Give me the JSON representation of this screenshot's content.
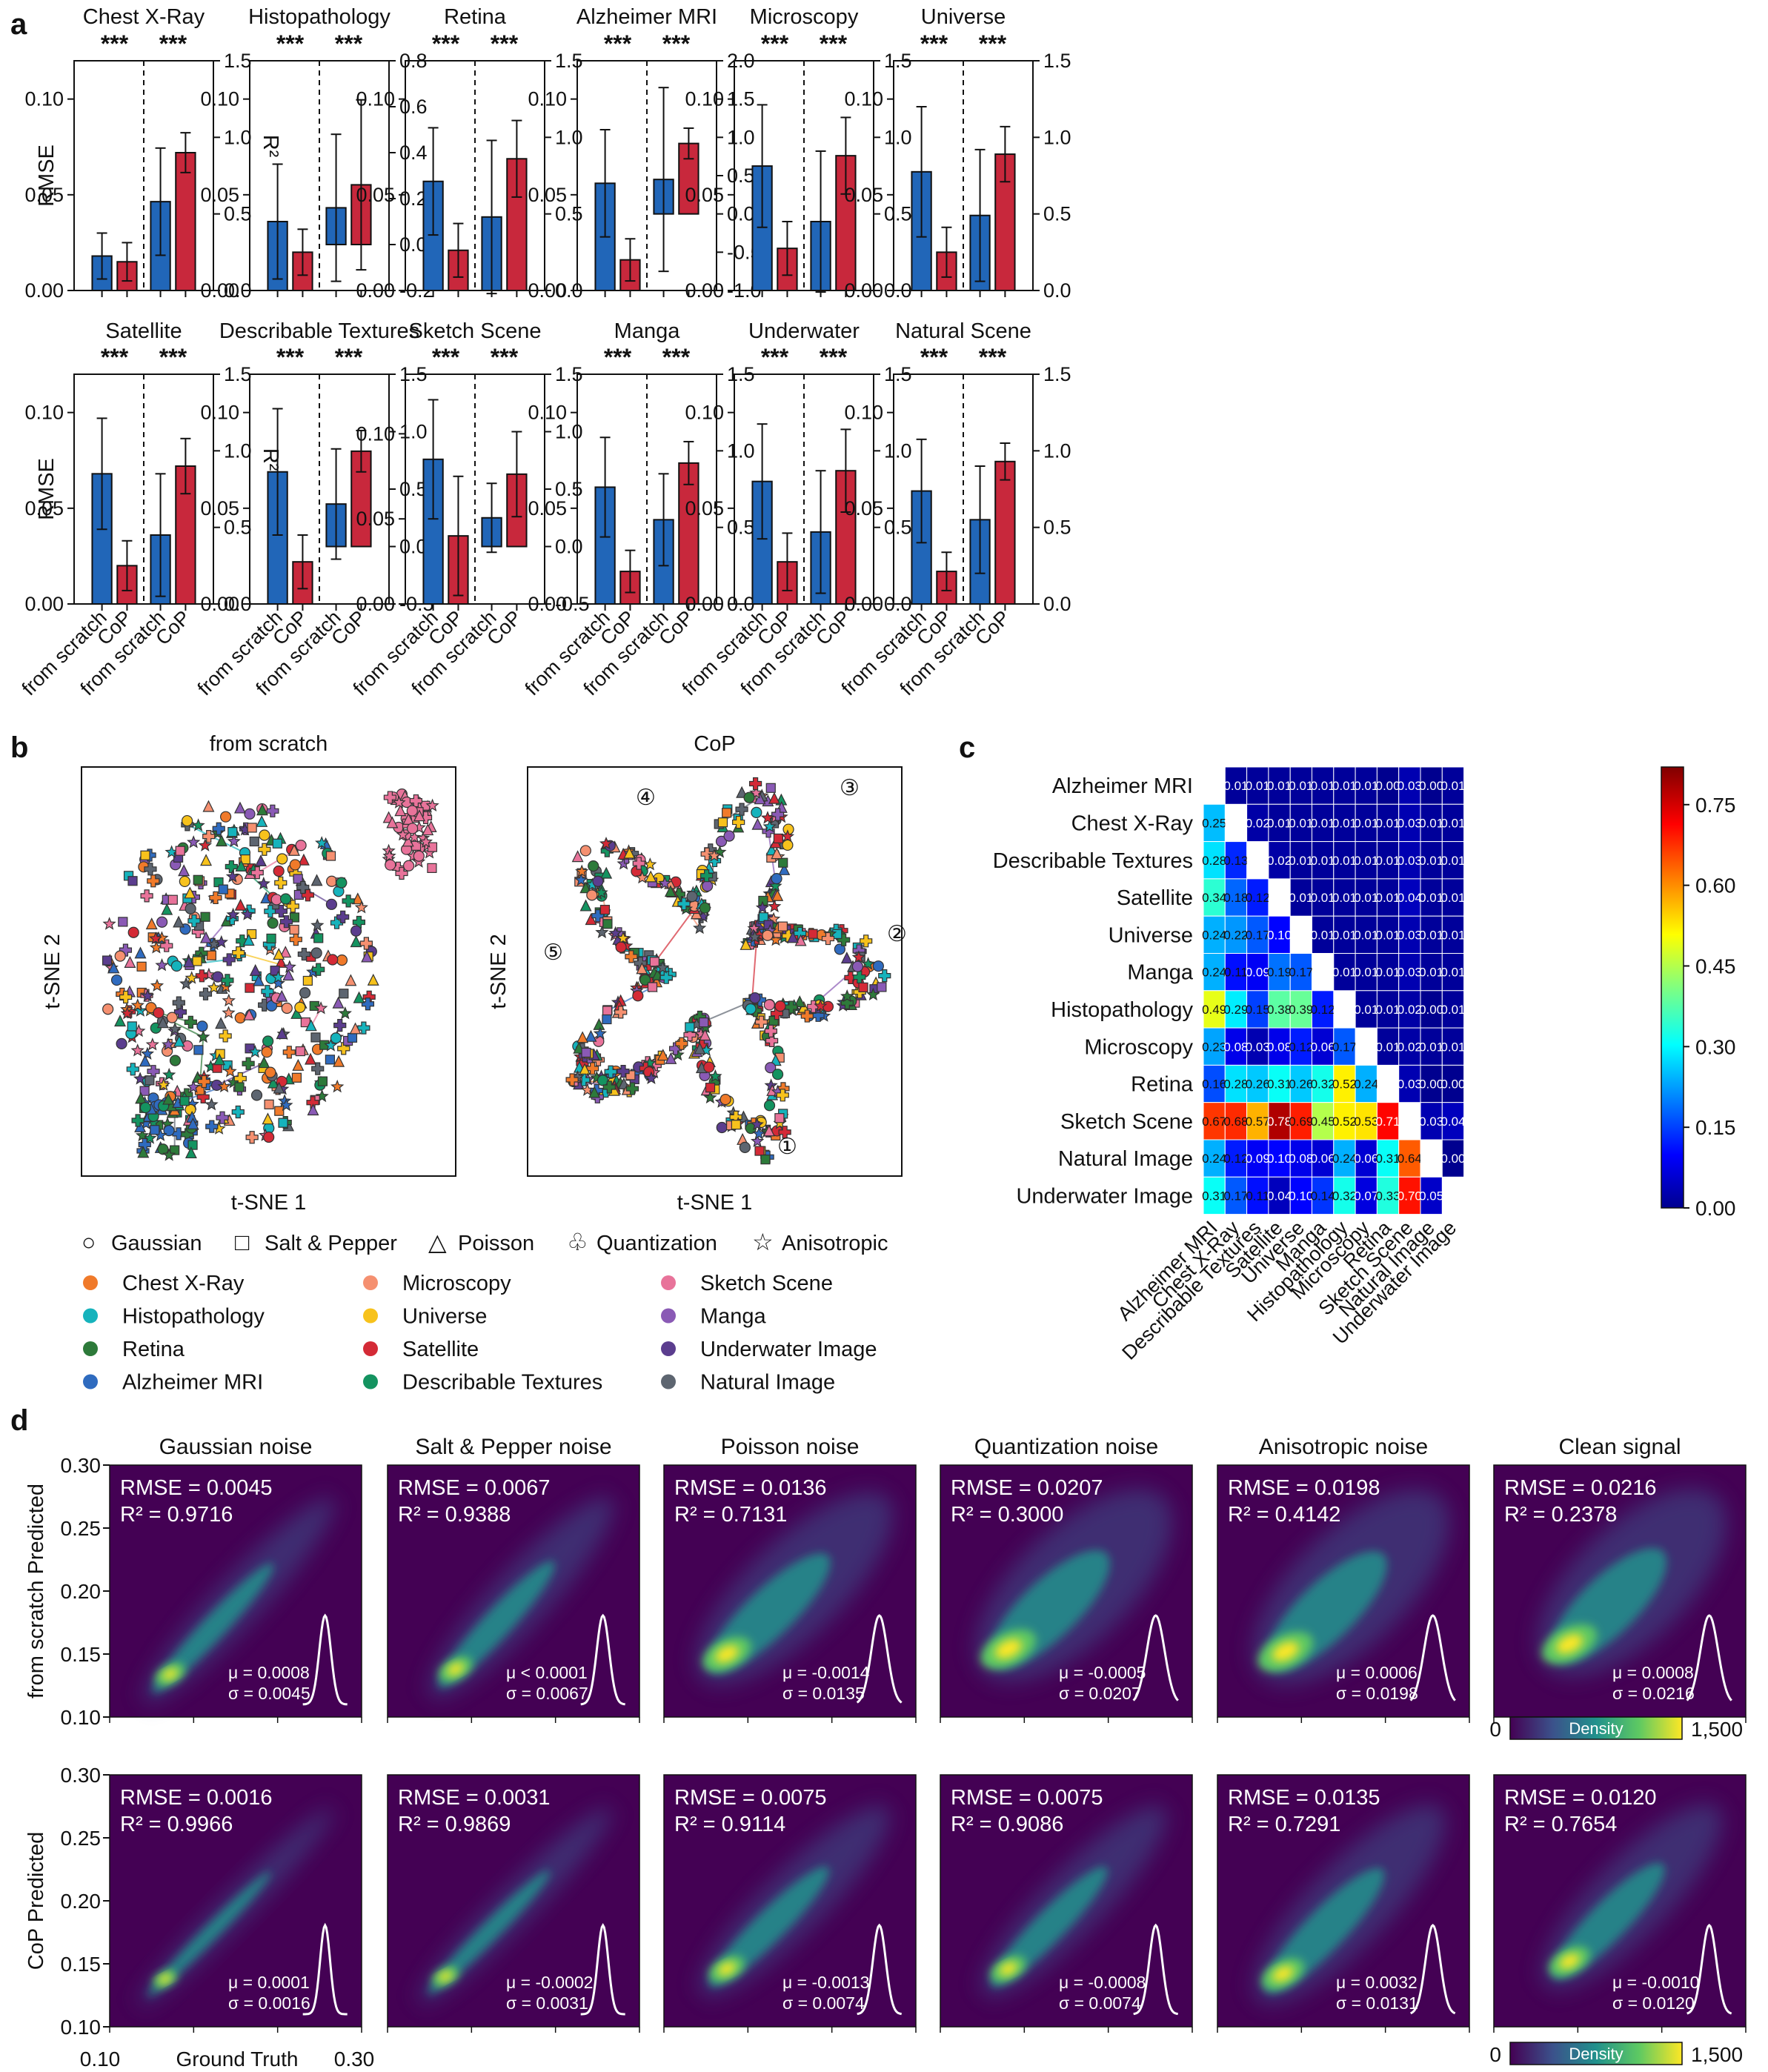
{
  "panel_labels": {
    "a": "a",
    "b": "b",
    "c": "c",
    "d": "d"
  },
  "significance": "***",
  "colors": {
    "from_scratch": "#2166b8",
    "cop": "#c8283c"
  },
  "chart_data": [
    {
      "type": "bar",
      "panel": "a",
      "categories": [
        "from scratch",
        "CoP",
        "from scratch",
        "CoP"
      ],
      "ylabel_left": "RMSE",
      "ylabel_right": "R²",
      "subplots": [
        {
          "title": "Chest X-Ray",
          "ylim_left": [
            0,
            0.12
          ],
          "ylim_right": [
            0,
            1.5
          ],
          "left_ticks": [
            "0.00",
            "0.05",
            "0.10"
          ],
          "right_ticks": [
            "0.0",
            "0.5",
            "1.0",
            "1.5"
          ],
          "rmse": [
            0.018,
            0.015
          ],
          "rmse_err": [
            0.012,
            0.01
          ],
          "r2": [
            0.58,
            0.9
          ],
          "r2_err": [
            0.35,
            0.13
          ]
        },
        {
          "title": "Histopathology",
          "ylim_left": [
            0,
            0.12
          ],
          "ylim_right": [
            -0.2,
            0.8
          ],
          "left_ticks": [
            "0.00",
            "0.05",
            "0.10"
          ],
          "right_ticks": [
            "-0.2",
            "0.0",
            "0.2",
            "0.4",
            "0.6",
            "0.8"
          ],
          "rmse": [
            0.036,
            0.02
          ],
          "rmse_err": [
            0.03,
            0.012
          ],
          "r2": [
            0.16,
            0.26
          ],
          "r2_err": [
            0.32,
            0.37
          ]
        },
        {
          "title": "Retina",
          "ylim_left": [
            0,
            0.12
          ],
          "ylim_right": [
            0,
            1.5
          ],
          "left_ticks": [
            "0.00",
            "0.05",
            "0.10"
          ],
          "right_ticks": [
            "0.0",
            "0.5",
            "1.0",
            "1.5"
          ],
          "rmse": [
            0.057,
            0.021
          ],
          "rmse_err": [
            0.028,
            0.014
          ],
          "r2": [
            0.48,
            0.86
          ],
          "r2_err": [
            0.5,
            0.25
          ]
        },
        {
          "title": "Alzheimer MRI",
          "ylim_left": [
            0,
            0.12
          ],
          "ylim_right": [
            -1.0,
            2.0
          ],
          "left_ticks": [
            "0.00",
            "0.05",
            "0.10"
          ],
          "right_ticks": [
            "-1.0",
            "-0.5",
            "0.0",
            "0.5",
            "1.0",
            "1.5",
            "2.0"
          ],
          "rmse": [
            0.056,
            0.016
          ],
          "rmse_err": [
            0.028,
            0.011
          ],
          "r2": [
            0.45,
            0.92
          ],
          "r2_err": [
            1.2,
            0.2
          ]
        },
        {
          "title": "Microscopy",
          "ylim_left": [
            0,
            0.12
          ],
          "ylim_right": [
            0,
            1.5
          ],
          "left_ticks": [
            "0.00",
            "0.05",
            "0.10"
          ],
          "right_ticks": [
            "0.0",
            "0.5",
            "1.0",
            "1.5"
          ],
          "rmse": [
            0.065,
            0.022
          ],
          "rmse_err": [
            0.032,
            0.014
          ],
          "r2": [
            0.45,
            0.88
          ],
          "r2_err": [
            0.46,
            0.25
          ]
        },
        {
          "title": "Universe",
          "ylim_left": [
            0,
            0.12
          ],
          "ylim_right": [
            0,
            1.5
          ],
          "left_ticks": [
            "0.00",
            "0.05",
            "0.10"
          ],
          "right_ticks": [
            "0.0",
            "0.5",
            "1.0",
            "1.5"
          ],
          "rmse": [
            0.062,
            0.02
          ],
          "rmse_err": [
            0.034,
            0.013
          ],
          "r2": [
            0.49,
            0.89
          ],
          "r2_err": [
            0.43,
            0.18
          ]
        },
        {
          "title": "Satellite",
          "ylim_left": [
            0,
            0.12
          ],
          "ylim_right": [
            0,
            1.5
          ],
          "left_ticks": [
            "0.00",
            "0.05",
            "0.10"
          ],
          "right_ticks": [
            "0.0",
            "0.5",
            "1.0",
            "1.5"
          ],
          "rmse": [
            0.068,
            0.02
          ],
          "rmse_err": [
            0.029,
            0.013
          ],
          "r2": [
            0.45,
            0.9
          ],
          "r2_err": [
            0.4,
            0.18
          ]
        },
        {
          "title": "Describable Textures",
          "ylim_left": [
            0,
            0.12
          ],
          "ylim_right": [
            -0.5,
            1.5
          ],
          "left_ticks": [
            "0.00",
            "0.05",
            "0.10"
          ],
          "right_ticks": [
            "-0.5",
            "0.0",
            "0.5",
            "1.0",
            "1.5"
          ],
          "rmse": [
            0.069,
            0.022
          ],
          "rmse_err": [
            0.033,
            0.014
          ],
          "r2": [
            0.37,
            0.83
          ],
          "r2_err": [
            0.48,
            0.18
          ]
        },
        {
          "title": "Sketch Scene",
          "ylim_left": [
            0,
            0.135
          ],
          "ylim_right": [
            -0.5,
            1.5
          ],
          "left_ticks": [
            "0.00",
            "0.05",
            "0.10"
          ],
          "right_ticks": [
            "-0.5",
            "0.0",
            "0.5",
            "1.0",
            "1.5"
          ],
          "rmse": [
            0.085,
            0.04
          ],
          "rmse_err": [
            0.035,
            0.035
          ],
          "r2": [
            0.25,
            0.63
          ],
          "r2_err": [
            0.3,
            0.37
          ]
        },
        {
          "title": "Manga",
          "ylim_left": [
            0,
            0.12
          ],
          "ylim_right": [
            0,
            1.5
          ],
          "left_ticks": [
            "0.00",
            "0.05",
            "0.10"
          ],
          "right_ticks": [
            "0.0",
            "0.5",
            "1.0",
            "1.5"
          ],
          "rmse": [
            0.061,
            0.017
          ],
          "rmse_err": [
            0.026,
            0.011
          ],
          "r2": [
            0.55,
            0.92
          ],
          "r2_err": [
            0.3,
            0.14
          ]
        },
        {
          "title": "Underwater",
          "ylim_left": [
            0,
            0.12
          ],
          "ylim_right": [
            0,
            1.5
          ],
          "left_ticks": [
            "0.00",
            "0.05",
            "0.10"
          ],
          "right_ticks": [
            "0.0",
            "0.5",
            "1.0",
            "1.5"
          ],
          "rmse": [
            0.064,
            0.022
          ],
          "rmse_err": [
            0.03,
            0.015
          ],
          "r2": [
            0.47,
            0.87
          ],
          "r2_err": [
            0.4,
            0.27
          ]
        },
        {
          "title": "Natural Scene",
          "ylim_left": [
            0,
            0.12
          ],
          "ylim_right": [
            0,
            1.5
          ],
          "left_ticks": [
            "0.00",
            "0.05",
            "0.10"
          ],
          "right_ticks": [
            "0.0",
            "0.5",
            "1.0",
            "1.5"
          ],
          "rmse": [
            0.059,
            0.017
          ],
          "rmse_err": [
            0.027,
            0.01
          ],
          "r2": [
            0.55,
            0.93
          ],
          "r2_err": [
            0.35,
            0.12
          ]
        }
      ]
    },
    {
      "type": "scatter",
      "panel": "b",
      "titles": [
        "from scratch",
        "CoP"
      ],
      "xlabel": "t-SNE 1",
      "ylabel": "t-SNE 2",
      "cluster_markers": [
        "①",
        "②",
        "③",
        "④",
        "⑤"
      ],
      "noise_types": [
        {
          "symbol": "○",
          "label": "Gaussian"
        },
        {
          "symbol": "□",
          "label": "Salt & Pepper"
        },
        {
          "symbol": "△",
          "label": "Poisson"
        },
        {
          "symbol": "♧",
          "label": "Quantization"
        },
        {
          "symbol": "☆",
          "label": "Anisotropic"
        }
      ],
      "datasets": [
        {
          "label": "Chest X-Ray",
          "color": "#f07a2a"
        },
        {
          "label": "Histopathology",
          "color": "#16b3bc"
        },
        {
          "label": "Retina",
          "color": "#2d7a3a"
        },
        {
          "label": "Alzheimer MRI",
          "color": "#2f6bbf"
        },
        {
          "label": "Microscopy",
          "color": "#f59070"
        },
        {
          "label": "Universe",
          "color": "#f7c21c"
        },
        {
          "label": "Satellite",
          "color": "#d42a36"
        },
        {
          "label": "Describable Textures",
          "color": "#149360"
        },
        {
          "label": "Sketch Scene",
          "color": "#e8739a"
        },
        {
          "label": "Manga",
          "color": "#8a5ab5"
        },
        {
          "label": "Underwater Image",
          "color": "#5b3d8e"
        },
        {
          "label": "Natural Image",
          "color": "#5d6570"
        }
      ]
    },
    {
      "type": "heatmap",
      "panel": "c",
      "labels": [
        "Alzheimer MRI",
        "Chest X-Ray",
        "Describable Textures",
        "Satellite",
        "Universe",
        "Manga",
        "Histopathology",
        "Microscopy",
        "Retina",
        "Sketch Scene",
        "Natural Image",
        "Underwater Image"
      ],
      "matrix": [
        [
          null,
          "0.01",
          "0.01",
          "0.01",
          "0.01",
          "0.01",
          "0.01",
          "0.01",
          "0.00",
          "0.03",
          "0.00",
          "0.01"
        ],
        [
          "0.25",
          null,
          "0.02",
          "0.01",
          "0.01",
          "0.01",
          "0.01",
          "0.01",
          "0.01",
          "0.03",
          "0.01",
          "0.01"
        ],
        [
          "0.28",
          "0.13",
          null,
          "0.02",
          "0.01",
          "0.01",
          "0.01",
          "0.01",
          "0.01",
          "0.03",
          "0.01",
          "0.01"
        ],
        [
          "0.34",
          "0.18",
          "0.12",
          null,
          "0.01",
          "0.01",
          "0.01",
          "0.01",
          "0.01",
          "0.04",
          "0.01",
          "0.01"
        ],
        [
          "0.24",
          "0.22",
          "0.17",
          "0.10",
          null,
          "0.01",
          "0.01",
          "0.01",
          "0.01",
          "0.03",
          "0.01",
          "0.01"
        ],
        [
          "0.24",
          "0.11",
          "0.09",
          "0.19",
          "0.17",
          null,
          "0.01",
          "0.01",
          "0.01",
          "0.03",
          "0.01",
          "0.01"
        ],
        [
          "0.49",
          "0.29",
          "0.15",
          "0.38",
          "0.39",
          "0.12",
          null,
          "0.01",
          "0.01",
          "0.02",
          "0.00",
          "0.01"
        ],
        [
          "0.23",
          "0.08",
          "0.03",
          "0.08",
          "0.12",
          "0.06",
          "0.17",
          null,
          "0.01",
          "0.02",
          "0.01",
          "0.01"
        ],
        [
          "0.16",
          "0.28",
          "0.26",
          "0.31",
          "0.26",
          "0.32",
          "0.52",
          "0.24",
          null,
          "0.03",
          "0.00",
          "0.00"
        ],
        [
          "0.67",
          "0.68",
          "0.57",
          "0.78",
          "0.69",
          "0.45",
          "0.52",
          "0.53",
          "0.71",
          null,
          "0.03",
          "0.04"
        ],
        [
          "0.24",
          "0.12",
          "0.09",
          "0.10",
          "0.08",
          "0.06",
          "0.24",
          "0.06",
          "0.31",
          "0.64",
          null,
          "0.00"
        ],
        [
          "0.31",
          "0.17",
          "0.11",
          "0.04",
          "0.10",
          "0.14",
          "0.32",
          "0.07",
          "0.33",
          "0.70",
          "0.05",
          null
        ]
      ],
      "colorbar_ticks": [
        "0.00",
        "0.15",
        "0.30",
        "0.45",
        "0.60",
        "0.75"
      ],
      "vmax": 0.82
    },
    {
      "type": "heatmap",
      "panel": "d",
      "columns": [
        "Gaussian noise",
        "Salt & Pepper noise",
        "Poisson noise",
        "Quantization noise",
        "Anisotropic noise",
        "Clean signal"
      ],
      "row_labels": [
        "from scratch Predicted",
        "CoP Predicted"
      ],
      "xlabel": "Ground Truth",
      "x_range_labels": [
        "0.10",
        "0.30"
      ],
      "y_ticks": [
        "0.30",
        "0.25",
        "0.20",
        "0.15",
        "0.10"
      ],
      "colorbar": {
        "min": "0",
        "max": "1,500",
        "label": "Density"
      },
      "rows": [
        [
          {
            "rmse": "RMSE = 0.0045",
            "r2": "R² = 0.9716",
            "mu": "μ = 0.0008",
            "sigma": "σ = 0.0045",
            "spread": 0.3,
            "center": [
              0.24,
              0.83
            ]
          },
          {
            "rmse": "RMSE = 0.0067",
            "r2": "R² = 0.9388",
            "mu": "μ < 0.0001",
            "sigma": "σ = 0.0067",
            "spread": 0.4,
            "center": [
              0.27,
              0.81
            ]
          },
          {
            "rmse": "RMSE = 0.0136",
            "r2": "R² = 0.7131",
            "mu": "μ = -0.0014",
            "sigma": "σ =  0.0135",
            "spread": 0.8,
            "center": [
              0.25,
              0.75
            ]
          },
          {
            "rmse": "RMSE = 0.0207",
            "r2": "R² = 0.3000",
            "mu": "μ = -0.0005",
            "sigma": "σ =  0.0207",
            "spread": 1.0,
            "center": [
              0.27,
              0.73
            ]
          },
          {
            "rmse": "RMSE = 0.0198",
            "r2": "R² = 0.4142",
            "mu": "μ = 0.0006",
            "sigma": "σ = 0.0198",
            "spread": 1.0,
            "center": [
              0.27,
              0.74
            ]
          },
          {
            "rmse": "RMSE = 0.0216",
            "r2": "R² = 0.2378",
            "mu": "μ = 0.0008",
            "sigma": "σ = 0.0216",
            "spread": 1.0,
            "center": [
              0.3,
              0.71
            ]
          }
        ],
        [
          {
            "rmse": "RMSE = 0.0016",
            "r2": "R² = 0.9966",
            "mu": "μ = 0.0001",
            "sigma": "σ = 0.0016",
            "spread": 0.12,
            "center": [
              0.22,
              0.81
            ]
          },
          {
            "rmse": "RMSE = 0.0031",
            "r2": "R² = 0.9869",
            "mu": "μ = -0.0002",
            "sigma": "σ =  0.0031",
            "spread": 0.2,
            "center": [
              0.23,
              0.8
            ]
          },
          {
            "rmse": "RMSE = 0.0075",
            "r2": "R² = 0.9114",
            "mu": "μ = -0.0013",
            "sigma": "σ =  0.0074",
            "spread": 0.45,
            "center": [
              0.25,
              0.77
            ]
          },
          {
            "rmse": "RMSE = 0.0075",
            "r2": "R² = 0.9086",
            "mu": "μ = -0.0008",
            "sigma": "σ =  0.0074",
            "spread": 0.45,
            "center": [
              0.27,
              0.77
            ]
          },
          {
            "rmse": "RMSE = 0.0135",
            "r2": "R² = 0.7291",
            "mu": "μ = 0.0032",
            "sigma": "σ = 0.0131",
            "spread": 0.65,
            "center": [
              0.26,
              0.79
            ]
          },
          {
            "rmse": "RMSE = 0.0120",
            "r2": "R² = 0.7654",
            "mu": "μ = -0.0010",
            "sigma": "σ = 0.0120",
            "spread": 0.6,
            "center": [
              0.3,
              0.74
            ]
          }
        ]
      ]
    }
  ]
}
